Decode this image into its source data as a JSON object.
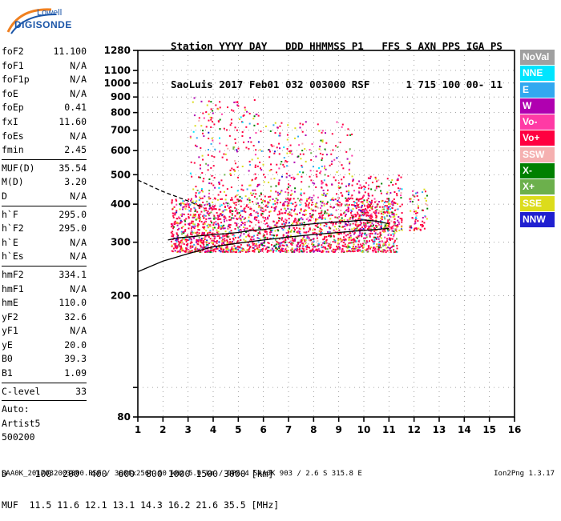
{
  "logo": {
    "line1": "Lowell",
    "line2": "DIGISONDE"
  },
  "header": {
    "row1": "Station YYYY DAY   DDD HHMMSS P1   FFS S AXN PPS IGA PS",
    "row2": "SaoLuis 2017 Feb01 032 003000 RSF      1 715 100 00- 11"
  },
  "params": [
    {
      "name": "foF2",
      "value": "11.100"
    },
    {
      "name": "foF1",
      "value": "N/A"
    },
    {
      "name": "foF1p",
      "value": "N/A"
    },
    {
      "name": "foE",
      "value": "N/A"
    },
    {
      "name": "foEp",
      "value": "0.41"
    },
    {
      "name": "fxI",
      "value": "11.60"
    },
    {
      "name": "foEs",
      "value": "N/A"
    },
    {
      "name": "fmin",
      "value": "2.45"
    },
    {
      "name": "---",
      "value": ""
    },
    {
      "name": "MUF(D)",
      "value": "35.54"
    },
    {
      "name": "M(D)",
      "value": "3.20"
    },
    {
      "name": "D",
      "value": "N/A"
    },
    {
      "name": "---",
      "value": ""
    },
    {
      "name": "h`F",
      "value": "295.0"
    },
    {
      "name": "h`F2",
      "value": "295.0"
    },
    {
      "name": "h`E",
      "value": "N/A"
    },
    {
      "name": "h`Es",
      "value": "N/A"
    },
    {
      "name": "---",
      "value": ""
    },
    {
      "name": "hmF2",
      "value": "334.1"
    },
    {
      "name": "hmF1",
      "value": "N/A"
    },
    {
      "name": "hmE",
      "value": "110.0"
    },
    {
      "name": "yF2",
      "value": "32.6"
    },
    {
      "name": "yF1",
      "value": "N/A"
    },
    {
      "name": "yE",
      "value": "20.0"
    },
    {
      "name": "B0",
      "value": "39.3"
    },
    {
      "name": "B1",
      "value": "1.09"
    },
    {
      "name": "---",
      "value": ""
    },
    {
      "name": "C-level",
      "value": "33"
    },
    {
      "name": "---",
      "value": ""
    }
  ],
  "auto_block": {
    "line1": "Auto:",
    "line2": "Artist5",
    "line3": "500200"
  },
  "legend": [
    {
      "label": "NoVal",
      "color": "#a0a0a0"
    },
    {
      "label": "NNE",
      "color": "#00e5ff"
    },
    {
      "label": "E",
      "color": "#32a8f0"
    },
    {
      "label": "W",
      "color": "#b000b0"
    },
    {
      "label": "Vo-",
      "color": "#ff3aa5"
    },
    {
      "label": "Vo+",
      "color": "#ff0040"
    },
    {
      "label": "SSW",
      "color": "#f5b0b0"
    },
    {
      "label": "X-",
      "color": "#008000"
    },
    {
      "label": "X+",
      "color": "#6cb04c"
    },
    {
      "label": "SSE",
      "color": "#dcdc1c"
    },
    {
      "label": "NNW",
      "color": "#2020d0"
    }
  ],
  "footer": {
    "d_row": "D     100  200  400  600  800 1000 1500 3000 [km]",
    "muf_row": "MUF  11.5 11.6 12.1 13.1 14.3 16.2 21.6 35.5 [MHz]",
    "file_line": "SAA0K_2017032003000.RSF / 300fx256h 50 kHz 5.0 km / DPS-4 SAA0K 903 / 2.6 S 315.8 E",
    "version": "Ion2Png 1.3.17"
  },
  "chart_data": {
    "type": "scatter",
    "title": "",
    "xlabel": "",
    "ylabel": "",
    "xlim": [
      1,
      16
    ],
    "ylim": [
      80,
      1280
    ],
    "x_scale": "linear",
    "y_scale": "log",
    "grid": true,
    "x_ticks": [
      1,
      2,
      3,
      4,
      5,
      6,
      7,
      8,
      9,
      10,
      11,
      12,
      13,
      14,
      15,
      16
    ],
    "y_ticks": [
      80,
      100,
      200,
      300,
      400,
      500,
      600,
      700,
      800,
      900,
      1000,
      1100,
      1280
    ],
    "y_tick_labels": [
      "80",
      "",
      "200",
      "300",
      "400",
      "500",
      "600",
      "700",
      "800",
      "900",
      "1000",
      "1100",
      "1280"
    ],
    "traces": {
      "ordinary_trace": {
        "color": "#000000",
        "points": [
          [
            2.2,
            305
          ],
          [
            2.6,
            310
          ],
          [
            3.0,
            312
          ],
          [
            3.5,
            315
          ],
          [
            4.0,
            318
          ],
          [
            4.5,
            320
          ],
          [
            5.0,
            323
          ],
          [
            5.5,
            328
          ],
          [
            6.0,
            330
          ],
          [
            6.5,
            335
          ],
          [
            7.0,
            340
          ],
          [
            7.5,
            342
          ],
          [
            8.0,
            345
          ],
          [
            8.5,
            348
          ],
          [
            9.0,
            350
          ],
          [
            9.5,
            352
          ],
          [
            10.0,
            355
          ],
          [
            10.5,
            352
          ],
          [
            11.0,
            345
          ]
        ]
      },
      "virtual_height_model": {
        "color": "#000000",
        "points": [
          [
            1.0,
            240
          ],
          [
            2.0,
            260
          ],
          [
            3.0,
            275
          ],
          [
            4.0,
            290
          ],
          [
            5.0,
            298
          ],
          [
            6.0,
            305
          ],
          [
            7.0,
            312
          ],
          [
            8.0,
            318
          ],
          [
            9.0,
            323
          ],
          [
            10.0,
            328
          ],
          [
            11.0,
            333
          ]
        ]
      },
      "dashed_trace": {
        "color": "#000000",
        "points": [
          [
            1.0,
            480
          ],
          [
            2.0,
            440
          ],
          [
            3.0,
            410
          ],
          [
            3.6,
            390
          ]
        ]
      }
    },
    "echo_clusters": [
      {
        "fmin": 2.3,
        "fmax": 11.3,
        "hmin": 280,
        "hmax": 420,
        "density": 1.0
      },
      {
        "fmin": 3.0,
        "fmax": 5.8,
        "hmin": 420,
        "hmax": 900,
        "density": 0.35
      },
      {
        "fmin": 5.8,
        "fmax": 9.5,
        "hmin": 420,
        "hmax": 750,
        "density": 0.3
      },
      {
        "fmin": 9.5,
        "fmax": 11.5,
        "hmin": 330,
        "hmax": 500,
        "density": 0.5
      },
      {
        "fmin": 11.8,
        "fmax": 12.5,
        "hmin": 330,
        "hmax": 450,
        "density": 0.4
      }
    ]
  }
}
